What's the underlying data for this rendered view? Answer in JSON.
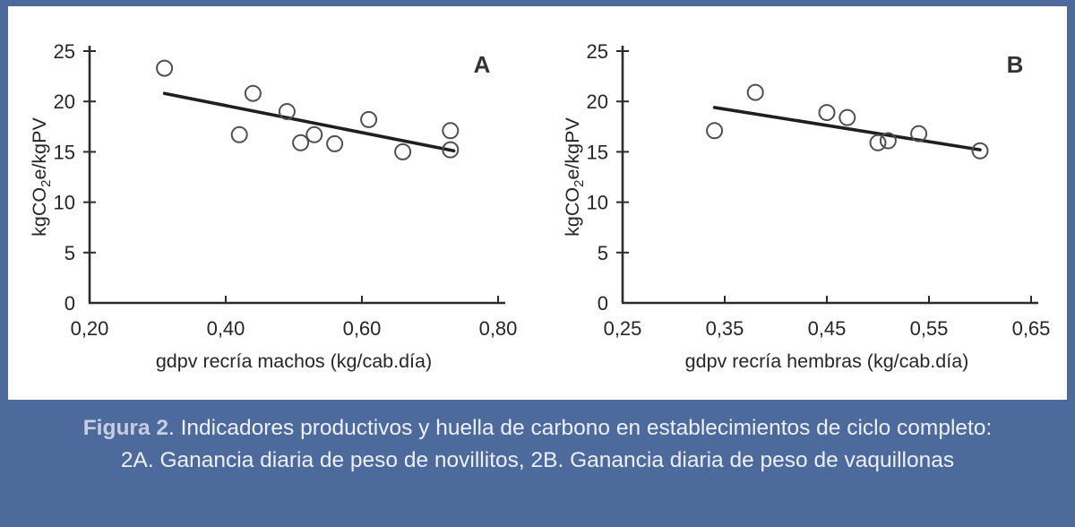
{
  "figure": {
    "frame_color": "#4d6a9c",
    "plot_background": "#ffffff"
  },
  "caption": {
    "label": "Figura 2",
    "text_after_label": ". Indicadores productivos y huella de carbono en establecimientos de ciclo completo: 2A. Ganancia diaria de peso de novillitos, 2B. Ganancia diaria de peso de vaquillonas",
    "bg_color": "#4d6a9c",
    "label_color": "#c7cee2",
    "text_color": "#eef0f6"
  },
  "chart_data": [
    {
      "type": "scatter",
      "panel_label": "A",
      "xlabel": "gdpv recría machos (kg/cab.día)",
      "ylabel_pre": "kgCO",
      "ylabel_sub": "2",
      "ylabel_post": "e/kgPV",
      "xlim": [
        0.2,
        0.8
      ],
      "ylim": [
        0,
        25
      ],
      "grid": false,
      "legend": "none",
      "xticks": [
        {
          "v": 0.2,
          "label": "0,20"
        },
        {
          "v": 0.4,
          "label": "0,40"
        },
        {
          "v": 0.6,
          "label": "0,60"
        },
        {
          "v": 0.8,
          "label": "0,80"
        }
      ],
      "yticks": [
        {
          "v": 0,
          "label": "0"
        },
        {
          "v": 5,
          "label": "5"
        },
        {
          "v": 10,
          "label": "10"
        },
        {
          "v": 15,
          "label": "15"
        },
        {
          "v": 20,
          "label": "20"
        },
        {
          "v": 25,
          "label": "25"
        }
      ],
      "points": [
        [
          0.31,
          23.3
        ],
        [
          0.42,
          16.7
        ],
        [
          0.44,
          20.8
        ],
        [
          0.49,
          19.0
        ],
        [
          0.51,
          15.9
        ],
        [
          0.53,
          16.7
        ],
        [
          0.56,
          15.8
        ],
        [
          0.61,
          18.2
        ],
        [
          0.66,
          15.0
        ],
        [
          0.73,
          17.1
        ],
        [
          0.73,
          15.2
        ]
      ],
      "trend_line": {
        "x1": 0.31,
        "y1": 20.8,
        "x2": 0.735,
        "y2": 15.1
      },
      "marker_color": "#4f4f4f",
      "line_color": "#1f1f1f",
      "axis_color": "#2b2b2b",
      "text_color": "#262626"
    },
    {
      "type": "scatter",
      "panel_label": "B",
      "xlabel": "gdpv recría hembras (kg/cab.día)",
      "ylabel_pre": "kgCO",
      "ylabel_sub": "2",
      "ylabel_post": "e/kgPV",
      "xlim": [
        0.25,
        0.65
      ],
      "ylim": [
        0,
        25
      ],
      "grid": false,
      "legend": "none",
      "xticks": [
        {
          "v": 0.25,
          "label": "0,25"
        },
        {
          "v": 0.35,
          "label": "0,35"
        },
        {
          "v": 0.45,
          "label": "0,45"
        },
        {
          "v": 0.55,
          "label": "0,55"
        },
        {
          "v": 0.65,
          "label": "0,65"
        }
      ],
      "yticks": [
        {
          "v": 0,
          "label": "0"
        },
        {
          "v": 5,
          "label": "5"
        },
        {
          "v": 10,
          "label": "10"
        },
        {
          "v": 15,
          "label": "15"
        },
        {
          "v": 20,
          "label": "20"
        },
        {
          "v": 25,
          "label": "25"
        }
      ],
      "points": [
        [
          0.34,
          17.1
        ],
        [
          0.38,
          20.9
        ],
        [
          0.45,
          18.9
        ],
        [
          0.47,
          18.4
        ],
        [
          0.5,
          15.9
        ],
        [
          0.51,
          16.1
        ],
        [
          0.54,
          16.8
        ],
        [
          0.6,
          15.1
        ]
      ],
      "trend_line": {
        "x1": 0.34,
        "y1": 19.4,
        "x2": 0.6,
        "y2": 15.2
      },
      "marker_color": "#4f4f4f",
      "line_color": "#1f1f1f",
      "axis_color": "#2b2b2b",
      "text_color": "#262626"
    }
  ]
}
